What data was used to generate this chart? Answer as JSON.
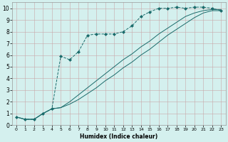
{
  "bg_color": "#d4f0ee",
  "line_color": "#1a6b6b",
  "grid_color": "#c8a8a8",
  "xlabel": "Humidex (Indice chaleur)",
  "xlim": [
    -0.5,
    23.5
  ],
  "ylim": [
    0,
    10.5
  ],
  "xticks": [
    0,
    1,
    2,
    3,
    4,
    5,
    6,
    7,
    8,
    9,
    10,
    11,
    12,
    13,
    14,
    15,
    16,
    17,
    18,
    19,
    20,
    21,
    22,
    23
  ],
  "yticks": [
    0,
    1,
    2,
    3,
    4,
    5,
    6,
    7,
    8,
    9,
    10
  ],
  "line1_x": [
    0,
    1,
    2,
    3,
    4,
    5,
    6,
    7,
    8,
    9,
    10,
    11,
    12,
    13,
    14,
    15,
    16,
    17,
    18,
    19,
    20,
    21,
    22,
    23
  ],
  "line1_y": [
    0.7,
    0.5,
    0.5,
    1.0,
    1.4,
    5.9,
    5.6,
    6.3,
    7.7,
    7.8,
    7.8,
    7.8,
    8.0,
    8.5,
    9.3,
    9.7,
    10.0,
    10.0,
    10.1,
    10.0,
    10.1,
    10.1,
    10.0,
    9.8
  ],
  "line2_x": [
    0,
    1,
    2,
    3,
    4,
    5,
    6,
    7,
    8,
    9,
    10,
    11,
    12,
    13,
    14,
    15,
    16,
    17,
    18,
    19,
    20,
    21,
    22,
    23
  ],
  "line2_y": [
    0.7,
    0.5,
    0.5,
    1.0,
    1.4,
    1.5,
    1.8,
    2.2,
    2.7,
    3.2,
    3.8,
    4.3,
    4.9,
    5.4,
    6.0,
    6.5,
    7.1,
    7.7,
    8.2,
    8.7,
    9.2,
    9.6,
    9.8,
    9.8
  ],
  "line3_x": [
    0,
    1,
    2,
    3,
    4,
    5,
    6,
    7,
    8,
    9,
    10,
    11,
    12,
    13,
    14,
    15,
    16,
    17,
    18,
    19,
    20,
    21,
    22,
    23
  ],
  "line3_y": [
    0.7,
    0.5,
    0.5,
    1.0,
    1.4,
    1.5,
    2.0,
    2.6,
    3.2,
    3.8,
    4.4,
    5.0,
    5.6,
    6.1,
    6.7,
    7.2,
    7.8,
    8.3,
    8.8,
    9.3,
    9.6,
    9.8,
    9.9,
    9.9
  ]
}
